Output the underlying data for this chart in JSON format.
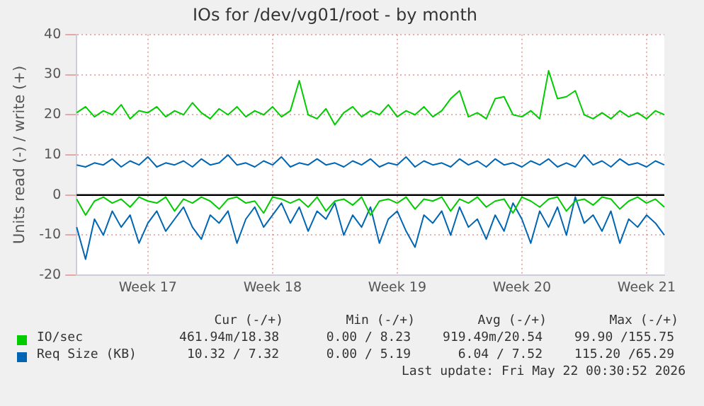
{
  "chart_data": {
    "type": "line",
    "title": "IOs for /dev/vg01/root - by month",
    "ylabel": "Units read (-) / write (+)",
    "categories": [
      null,
      null,
      null,
      null,
      null,
      null,
      null,
      null,
      "Week 17",
      null,
      null,
      null,
      null,
      null,
      null,
      null,
      null,
      null,
      null,
      null,
      null,
      null,
      "Week 18",
      null,
      null,
      null,
      null,
      null,
      null,
      null,
      null,
      null,
      null,
      null,
      null,
      null,
      "Week 19",
      null,
      null,
      null,
      null,
      null,
      null,
      null,
      null,
      null,
      null,
      null,
      null,
      null,
      "Week 20",
      null,
      null,
      null,
      null,
      null,
      null,
      null,
      null,
      null,
      null,
      null,
      null,
      null,
      "Week 21",
      null,
      null
    ],
    "ylim": [
      -20,
      40
    ],
    "yticks": [
      -20,
      -10,
      0,
      10,
      20,
      30,
      40
    ],
    "grid": true,
    "legend": "bottom",
    "marker": "none",
    "line_style": "solid",
    "ref_lines": [
      {
        "axis": "y",
        "value": 0,
        "color": "#000000"
      }
    ],
    "series": [
      {
        "color": "#00cc00",
        "values": [
          -1,
          -5,
          -1.5,
          -0.5,
          -2,
          -1,
          -3,
          -0.5,
          -1.5,
          -2,
          -0.5,
          -4,
          -1,
          -2,
          -0.5,
          -1.5,
          -3.5,
          -1,
          -0.5,
          -2,
          -1.5,
          -4.5,
          -0.5,
          -1,
          -2,
          -1,
          -3,
          -0.5,
          -4,
          -1.5,
          -1,
          -2.5,
          -0.5,
          -5,
          -1.5,
          -1,
          -2,
          -0.5,
          -3.5,
          -1,
          -1.5,
          -0.5,
          -4,
          -1,
          -2,
          -0.5,
          -3,
          -1.5,
          -1,
          -4.5,
          -0.5,
          -1.5,
          -3,
          -1,
          -0.5,
          -4,
          -1.5,
          -1,
          -2.5,
          -0.5,
          -1,
          -3.5,
          -1.5,
          -0.5,
          -2,
          -1,
          -3
        ]
      },
      {
        "name": "IO/sec",
        "color": "#00cc00",
        "values": [
          20.5,
          22,
          19.5,
          21,
          20,
          22.5,
          19,
          21,
          20.5,
          22,
          19.5,
          21,
          20,
          23,
          20.5,
          19,
          21.5,
          20,
          22,
          19.5,
          21,
          20,
          22,
          19.5,
          21,
          28.5,
          20,
          19,
          21.5,
          17.5,
          20.5,
          22,
          19.5,
          21,
          20,
          22.5,
          19.5,
          21,
          20,
          22,
          19.5,
          21,
          24,
          26,
          19.5,
          20.5,
          19,
          24,
          24.5,
          20,
          19.5,
          21,
          19,
          31,
          24,
          24.5,
          26,
          20,
          19,
          20.5,
          19,
          21,
          19.5,
          20.5,
          19,
          21,
          20
        ]
      },
      {
        "color": "#0066b3",
        "values": [
          -8,
          -16,
          -6,
          -10,
          -4,
          -8,
          -5,
          -12,
          -7,
          -4,
          -9,
          -6,
          -3,
          -8,
          -11,
          -5,
          -7,
          -4,
          -12,
          -6,
          -3,
          -8,
          -5,
          -2,
          -7,
          -3,
          -9,
          -4,
          -6,
          -2,
          -10,
          -5,
          -8,
          -3,
          -12,
          -6,
          -4,
          -9,
          -13,
          -5,
          -7,
          -4,
          -10,
          -3,
          -8,
          -6,
          -11,
          -5,
          -9,
          -2,
          -6,
          -12,
          -4,
          -8,
          -3,
          -10,
          -0.5,
          -7,
          -5,
          -9,
          -4,
          -12,
          -6,
          -8,
          -5,
          -7,
          -10
        ]
      },
      {
        "name": "Req Size (KB)",
        "color": "#0066b3",
        "values": [
          7.5,
          7,
          8,
          7.5,
          9,
          7,
          8.5,
          7.5,
          9.5,
          7,
          8,
          7.5,
          8.5,
          7,
          9,
          7.5,
          8,
          10,
          7.5,
          8,
          7,
          8.5,
          7.5,
          9.5,
          7,
          8,
          7.5,
          9,
          7.5,
          8,
          7,
          8.5,
          7.5,
          9,
          7,
          8,
          7.5,
          9.5,
          7,
          8.5,
          7.5,
          8,
          7,
          9,
          7.5,
          8.5,
          7,
          9,
          7.5,
          8,
          7,
          8.5,
          7.5,
          9,
          7,
          8,
          7,
          10,
          7.5,
          8.5,
          7,
          9,
          7.5,
          8,
          7,
          8.5,
          7.5
        ]
      }
    ],
    "annotations": [
      "Cur (-/+)",
      "Min (-/+)",
      "Avg (-/+)",
      "Max (-/+)",
      "461.94m/18.38",
      "0.00 / 8.23",
      "919.49m/20.54",
      "99.90 /155.75",
      "10.32 / 7.32",
      "0.00 / 5.19",
      "6.04 / 7.52",
      "115.20 /65.29",
      "Last update: Fri May 22 00:30:52 2026"
    ]
  }
}
